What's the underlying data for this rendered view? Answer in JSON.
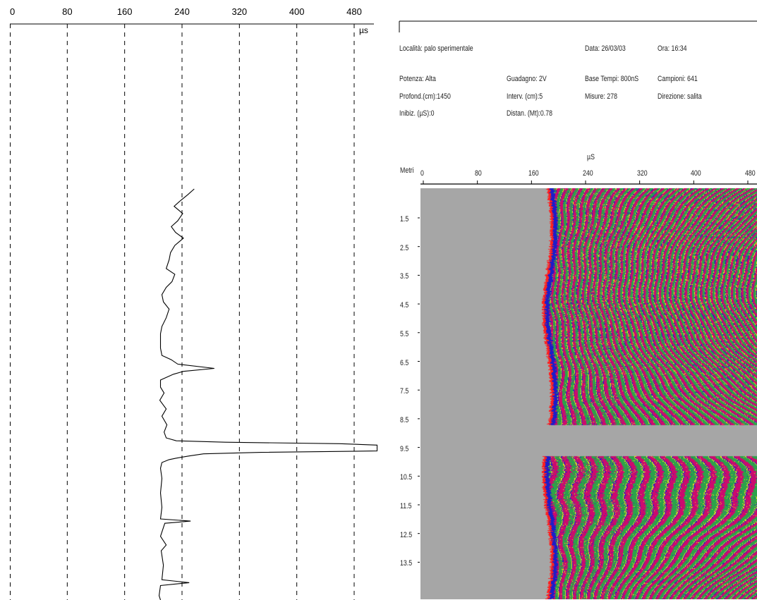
{
  "left_chart": {
    "chart_data": {
      "type": "line",
      "x_ticks": [
        0,
        80,
        160,
        240,
        320,
        400,
        480
      ],
      "x_unit": "µs",
      "xlim": [
        0,
        500
      ],
      "grid": "vertical-dashed",
      "series": [
        {
          "points": [
            [
              257,
              0
            ],
            [
              248,
              8
            ],
            [
              238,
              16
            ],
            [
              229,
              24
            ],
            [
              241,
              34
            ],
            [
              234,
              44
            ],
            [
              225,
              52
            ],
            [
              231,
              60
            ],
            [
              242,
              68
            ],
            [
              230,
              78
            ],
            [
              224,
              88
            ],
            [
              222,
              98
            ],
            [
              218,
              110
            ],
            [
              230,
              118
            ],
            [
              226,
              128
            ],
            [
              218,
              136
            ],
            [
              212,
              146
            ],
            [
              214,
              156
            ],
            [
              222,
              166
            ],
            [
              218,
              178
            ],
            [
              212,
              190
            ],
            [
              210,
              200
            ],
            [
              210,
              210
            ],
            [
              210,
              220
            ],
            [
              212,
              230
            ],
            [
              225,
              236
            ],
            [
              234,
              242
            ],
            [
              285,
              248
            ],
            [
              242,
              252
            ],
            [
              228,
              256
            ],
            [
              210,
              264
            ],
            [
              210,
              274
            ],
            [
              215,
              282
            ],
            [
              209,
              292
            ],
            [
              218,
              304
            ],
            [
              212,
              314
            ],
            [
              219,
              326
            ],
            [
              215,
              336
            ],
            [
              218,
              344
            ],
            [
              232,
              348
            ],
            [
              300,
              350
            ],
            [
              460,
              352
            ],
            [
              512,
              354
            ],
            [
              512,
              362
            ],
            [
              350,
              364
            ],
            [
              270,
              366
            ],
            [
              250,
              369
            ],
            [
              232,
              372
            ],
            [
              222,
              374
            ],
            [
              212,
              378
            ],
            [
              210,
              386
            ],
            [
              212,
              400
            ],
            [
              210,
              420
            ],
            [
              212,
              440
            ],
            [
              210,
              456
            ],
            [
              252,
              459
            ],
            [
              216,
              462
            ],
            [
              210,
              480
            ],
            [
              218,
              492
            ],
            [
              211,
              500
            ],
            [
              214,
              520
            ],
            [
              212,
              540
            ],
            [
              250,
              544
            ],
            [
              210,
              548
            ],
            [
              208,
              562
            ],
            [
              210,
              568
            ]
          ]
        }
      ]
    }
  },
  "info": {
    "localita": "Località: palo sperimentale",
    "data": "Data: 26/03/03",
    "ora": "Ora: 16:34",
    "potenza": "Potenza: Alta",
    "guadagno": "Guadagno:  2V",
    "base_tempi": "Base Tempi: 800nS",
    "campioni": "Campioni: 641",
    "profond": "Profond.(cm):1450",
    "interv": "Interv. (cm):5",
    "misure": "Misure: 278",
    "direzione": "Direzione: salita",
    "inibiz": "Inibiz. (µS):0",
    "distan": "Distan. (Mt):0.78"
  },
  "radargram": {
    "chart_data": {
      "type": "heatmap",
      "x_title": "µS",
      "y_title": "Metri",
      "x_ticks": [
        0,
        80,
        160,
        240,
        320,
        400,
        480
      ],
      "xlim": [
        0,
        500
      ],
      "depth_labels": [
        "1.5",
        "2.5",
        "3.5",
        "4.5",
        "5.5",
        "6.5",
        "7.5",
        "8.5",
        "9.5",
        "10.5",
        "11.5",
        "12.5",
        "13.5"
      ],
      "palette": [
        "#cc0a6e",
        "#2ca24a",
        "#f2e21a",
        "#1d1dc8",
        "#ff2020"
      ],
      "background": "#a6a6a6",
      "first_arrival_us": 180,
      "gap_depth_range_m": [
        8.7,
        9.8
      ]
    }
  }
}
